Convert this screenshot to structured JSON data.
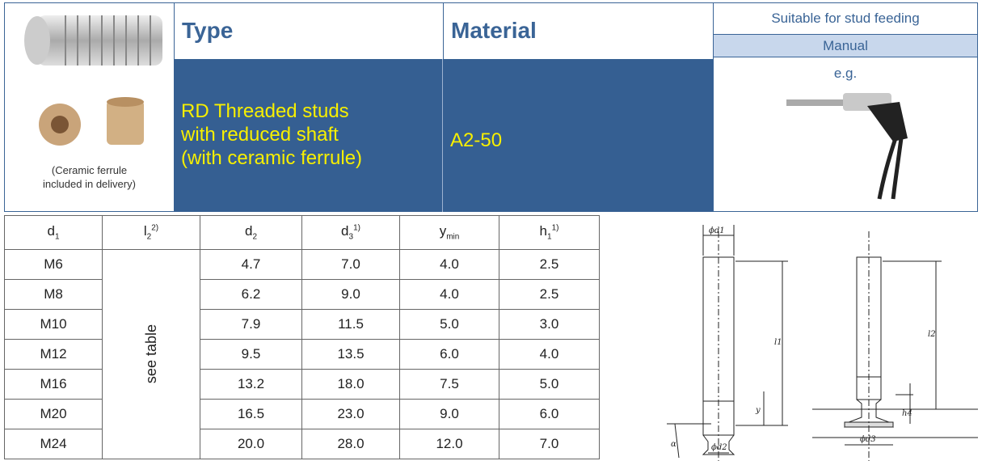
{
  "header": {
    "image_caption": [
      "(Ceramic ferrule",
      "included in delivery)"
    ],
    "type_label": "Type",
    "material_label": "Material",
    "feeding_label": "Suitable for stud feeding",
    "feeding_value": "Manual",
    "type_value": [
      "RD Threaded studs",
      "with reduced shaft",
      "(with ceramic ferrule)"
    ],
    "material_value": "A2-50",
    "example_label": "e.g."
  },
  "table": {
    "columns": [
      {
        "main": "d",
        "sub": "1"
      },
      {
        "main": "l",
        "sub": "2",
        "sup": "2)"
      },
      {
        "main": "d",
        "sub": "2"
      },
      {
        "main": "d",
        "sub": "3",
        "sup": "1)"
      },
      {
        "main": "y",
        "sub": "min"
      },
      {
        "main": "h",
        "sub": "1",
        "sup": "1)"
      }
    ],
    "l2_note": "see table",
    "rows": [
      [
        "M6",
        "4.7",
        "7.0",
        "4.0",
        "2.5"
      ],
      [
        "M8",
        "6.2",
        "9.0",
        "4.0",
        "2.5"
      ],
      [
        "M10",
        "7.9",
        "11.5",
        "5.0",
        "3.0"
      ],
      [
        "M12",
        "9.5",
        "13.5",
        "6.0",
        "4.0"
      ],
      [
        "M16",
        "13.2",
        "18.0",
        "7.5",
        "5.0"
      ],
      [
        "M20",
        "16.5",
        "23.0",
        "9.0",
        "6.0"
      ],
      [
        "M24",
        "20.0",
        "28.0",
        "12.0",
        "7.0"
      ]
    ]
  },
  "diagram": {
    "labels": [
      "ϕd1",
      "l1",
      "y",
      "α",
      "ϕd2",
      "l2",
      "h4",
      "ϕd3"
    ]
  }
}
